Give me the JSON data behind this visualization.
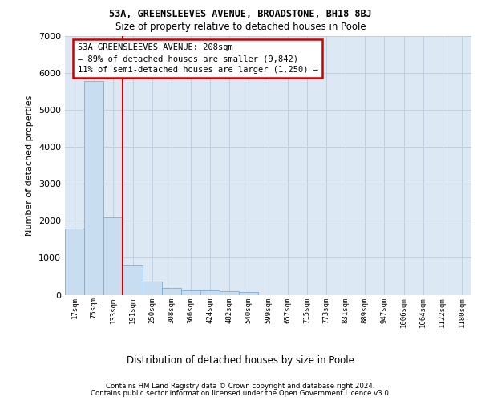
{
  "title1": "53A, GREENSLEEVES AVENUE, BROADSTONE, BH18 8BJ",
  "title2": "Size of property relative to detached houses in Poole",
  "xlabel": "Distribution of detached houses by size in Poole",
  "ylabel": "Number of detached properties",
  "footer1": "Contains HM Land Registry data © Crown copyright and database right 2024.",
  "footer2": "Contains public sector information licensed under the Open Government Licence v3.0.",
  "annotation_line1": "53A GREENSLEEVES AVENUE: 208sqm",
  "annotation_line2": "← 89% of detached houses are smaller (9,842)",
  "annotation_line3": "11% of semi-detached houses are larger (1,250) →",
  "bar_labels": [
    "17sqm",
    "75sqm",
    "133sqm",
    "191sqm",
    "250sqm",
    "308sqm",
    "366sqm",
    "424sqm",
    "482sqm",
    "540sqm",
    "599sqm",
    "657sqm",
    "715sqm",
    "773sqm",
    "831sqm",
    "889sqm",
    "947sqm",
    "1006sqm",
    "1064sqm",
    "1122sqm",
    "1180sqm"
  ],
  "bar_values": [
    1780,
    5780,
    2090,
    800,
    350,
    195,
    130,
    110,
    105,
    80,
    0,
    0,
    0,
    0,
    0,
    0,
    0,
    0,
    0,
    0,
    0
  ],
  "bar_color": "#c8ddf0",
  "bar_edge_color": "#7aadd4",
  "vline_index": 3,
  "vline_color": "#cc0000",
  "ylim_min": 0,
  "ylim_max": 7000,
  "yticks": [
    0,
    1000,
    2000,
    3000,
    4000,
    5000,
    6000,
    7000
  ],
  "grid_color": "#c0cfe0",
  "bg_color": "#dce8f4",
  "ann_box_edgecolor": "#cc0000",
  "fig_width": 6.0,
  "fig_height": 5.0,
  "dpi": 100
}
